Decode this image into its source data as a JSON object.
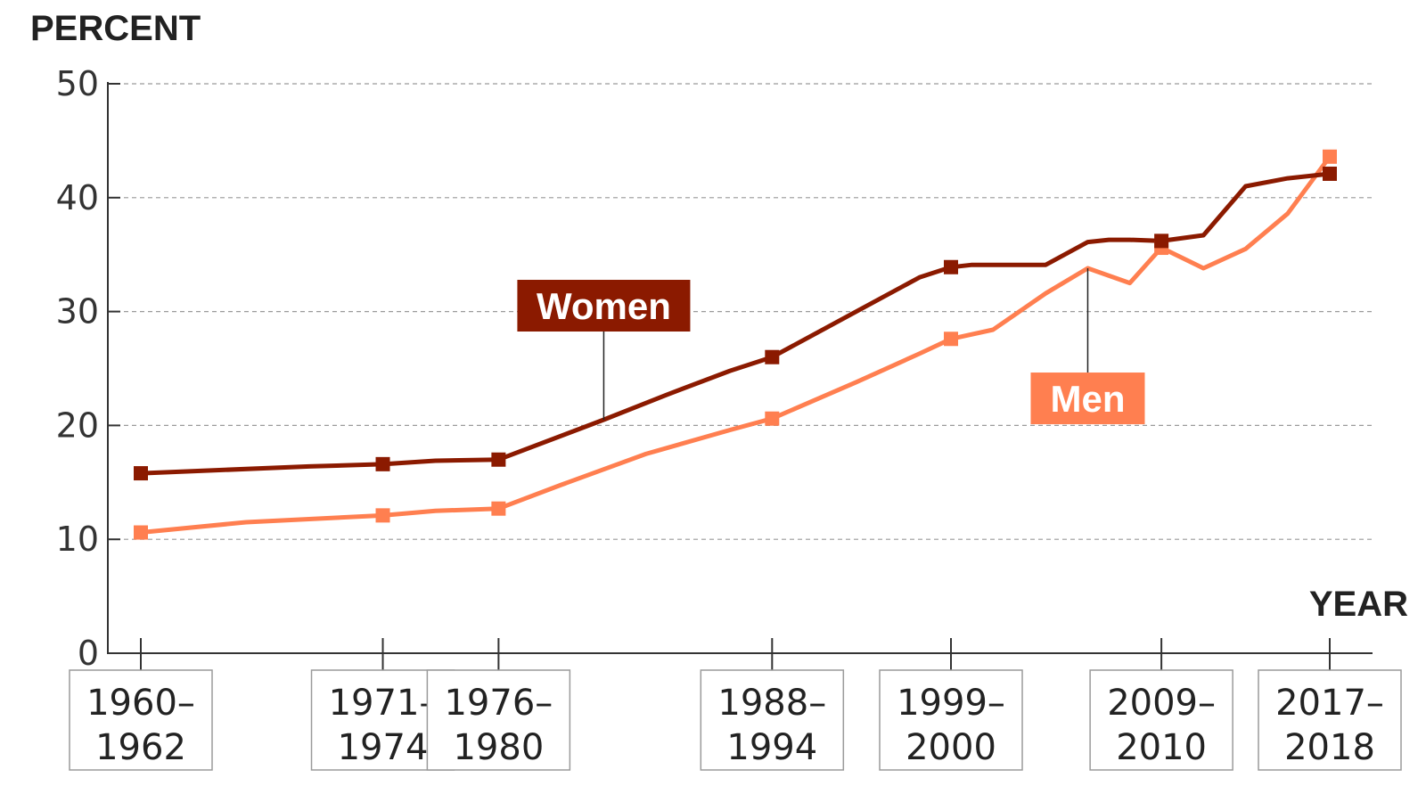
{
  "chart_data": {
    "type": "line",
    "ylabel": "PERCENT",
    "xlabel": "YEAR",
    "ylim": [
      0,
      50
    ],
    "yticks": [
      0,
      10,
      20,
      30,
      40,
      50
    ],
    "grid": true,
    "categories": [
      {
        "line1": "1960–",
        "line2": "1962",
        "x": 1961
      },
      {
        "line1": "1971–",
        "line2": "1974",
        "x": 1972.5
      },
      {
        "line1": "1976–",
        "line2": "1980",
        "x": 1978
      },
      {
        "line1": "1988–",
        "line2": "1994",
        "x": 1991
      },
      {
        "line1": "1999–",
        "line2": "2000",
        "x": 1999.5
      },
      {
        "line1": "2009–",
        "line2": "2010",
        "x": 2009.5
      },
      {
        "line1": "2017–",
        "line2": "2018",
        "x": 2017.5
      }
    ],
    "series": [
      {
        "name": "Women",
        "color": "#8b1a00",
        "points": [
          [
            1961,
            15.8
          ],
          [
            1969,
            16.4
          ],
          [
            1972.5,
            16.6
          ],
          [
            1975,
            16.9
          ],
          [
            1978,
            17.0
          ],
          [
            1983,
            20.5
          ],
          [
            1986,
            22.7
          ],
          [
            1989,
            24.8
          ],
          [
            1991,
            26.0
          ],
          [
            1995,
            30.0
          ],
          [
            1998,
            33.0
          ],
          [
            1999.5,
            33.9
          ],
          [
            2000.5,
            34.1
          ],
          [
            2004,
            34.1
          ],
          [
            2006,
            36.1
          ],
          [
            2007,
            36.3
          ],
          [
            2008,
            36.3
          ],
          [
            2009.5,
            36.2
          ],
          [
            2011.5,
            36.7
          ],
          [
            2013.5,
            41.0
          ],
          [
            2015.5,
            41.7
          ],
          [
            2017.5,
            42.1
          ]
        ],
        "markers": [
          [
            1961,
            15.8
          ],
          [
            1972.5,
            16.6
          ],
          [
            1978,
            17.0
          ],
          [
            1991,
            26.0
          ],
          [
            1999.5,
            33.9
          ],
          [
            2009.5,
            36.2
          ],
          [
            2017.5,
            42.1
          ]
        ]
      },
      {
        "name": "Men",
        "color": "#ff7f50",
        "points": [
          [
            1961,
            10.6
          ],
          [
            1966,
            11.5
          ],
          [
            1972.5,
            12.1
          ],
          [
            1975,
            12.5
          ],
          [
            1978,
            12.7
          ],
          [
            1981,
            14.8
          ],
          [
            1985,
            17.5
          ],
          [
            1989,
            19.6
          ],
          [
            1991,
            20.6
          ],
          [
            1995,
            23.8
          ],
          [
            1998,
            26.3
          ],
          [
            1999.5,
            27.6
          ],
          [
            2001.5,
            28.4
          ],
          [
            2004,
            31.6
          ],
          [
            2006,
            33.8
          ],
          [
            2008,
            32.5
          ],
          [
            2009.5,
            35.6
          ],
          [
            2011.5,
            33.8
          ],
          [
            2013.5,
            35.5
          ],
          [
            2015.5,
            38.6
          ],
          [
            2017.5,
            43.6
          ]
        ],
        "markers": [
          [
            1961,
            10.6
          ],
          [
            1972.5,
            12.1
          ],
          [
            1978,
            12.7
          ],
          [
            1991,
            20.6
          ],
          [
            1999.5,
            27.6
          ],
          [
            2009.5,
            35.6
          ],
          [
            2017.5,
            43.6
          ]
        ]
      }
    ],
    "legend": "inline labels",
    "annotations": [
      {
        "text": "Women",
        "series": 0,
        "point_x": 1983,
        "point_y": 20.5
      },
      {
        "text": "Men",
        "series": 1,
        "point_x": 2006,
        "point_y": 33.8
      }
    ]
  }
}
